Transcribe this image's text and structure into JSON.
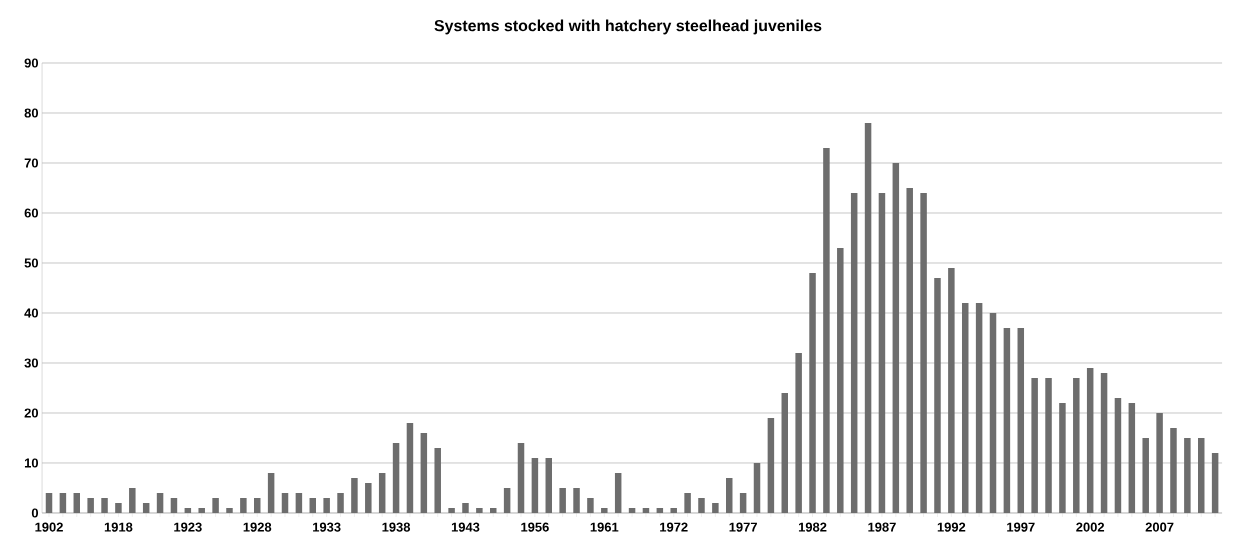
{
  "chart_data": {
    "type": "bar",
    "title": "Systems stocked with hatchery steelhead juveniles",
    "categories": [
      "1902",
      null,
      null,
      null,
      null,
      "1918",
      null,
      null,
      null,
      null,
      "1923",
      null,
      null,
      null,
      null,
      "1928",
      null,
      null,
      null,
      null,
      "1933",
      null,
      null,
      null,
      null,
      "1938",
      null,
      null,
      null,
      null,
      "1943",
      null,
      null,
      null,
      null,
      "1956",
      null,
      null,
      null,
      null,
      "1961",
      null,
      null,
      null,
      null,
      "1972",
      null,
      null,
      null,
      null,
      "1977",
      null,
      null,
      null,
      null,
      "1982",
      null,
      null,
      null,
      null,
      "1987",
      null,
      null,
      null,
      null,
      "1992",
      null,
      null,
      null,
      null,
      "1997",
      null,
      null,
      null,
      null,
      "2002",
      null,
      null,
      null,
      null,
      "2007",
      null,
      null,
      null,
      null
    ],
    "values": [
      4,
      4,
      4,
      3,
      3,
      2,
      5,
      2,
      4,
      3,
      1,
      1,
      3,
      1,
      3,
      3,
      8,
      4,
      4,
      3,
      3,
      4,
      7,
      6,
      8,
      14,
      18,
      16,
      13,
      1,
      2,
      1,
      1,
      5,
      14,
      11,
      11,
      5,
      5,
      3,
      1,
      8,
      1,
      1,
      1,
      1,
      4,
      3,
      2,
      7,
      4,
      10,
      19,
      24,
      32,
      48,
      73,
      53,
      64,
      78,
      64,
      70,
      65,
      64,
      47,
      49,
      42,
      42,
      40,
      37,
      37,
      27,
      27,
      22,
      27,
      29,
      28,
      23,
      22,
      15,
      20,
      17,
      15,
      15,
      12
    ],
    "color": "#6d6d6d",
    "ylim": [
      0,
      90
    ],
    "yticks": [
      0,
      10,
      20,
      30,
      40,
      50,
      60,
      70,
      80,
      90
    ],
    "grid": "y"
  }
}
